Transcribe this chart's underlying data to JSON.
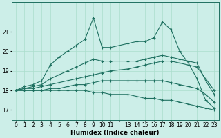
{
  "xlabel": "Humidex (Indice chaleur)",
  "bg_color": "#cceee8",
  "grid_color": "#aaddcc",
  "line_color": "#1e7060",
  "xlim": [
    -0.5,
    23.5
  ],
  "ylim": [
    16.5,
    22.5
  ],
  "yticks": [
    17,
    18,
    19,
    20,
    21
  ],
  "xtick_labels": [
    "0",
    "1",
    "2",
    "3",
    "4",
    "5",
    "6",
    "7",
    "8",
    "9",
    "10",
    "11",
    "",
    "13",
    "14",
    "15",
    "16",
    "17",
    "18",
    "19",
    "20",
    "21",
    "22",
    "23"
  ],
  "xtick_positions": [
    0,
    1,
    2,
    3,
    4,
    5,
    6,
    7,
    8,
    9,
    10,
    11,
    12,
    13,
    14,
    15,
    16,
    17,
    18,
    19,
    20,
    21,
    22,
    23
  ],
  "series_x": [
    0,
    1,
    2,
    3,
    4,
    5,
    6,
    7,
    8,
    9,
    10,
    11,
    13,
    14,
    15,
    16,
    17,
    18,
    19,
    20,
    21,
    22,
    23
  ],
  "series_max": [
    18.0,
    18.2,
    18.3,
    18.5,
    19.3,
    19.7,
    20.0,
    20.3,
    20.6,
    21.7,
    20.2,
    20.2,
    20.4,
    20.5,
    20.5,
    20.7,
    21.5,
    21.1,
    20.0,
    19.4,
    18.6,
    17.5,
    17.1
  ],
  "series_q3": [
    18.0,
    18.1,
    18.2,
    18.3,
    18.6,
    18.8,
    19.0,
    19.2,
    19.4,
    19.6,
    19.5,
    19.5,
    19.5,
    19.5,
    19.6,
    19.7,
    19.8,
    19.7,
    19.6,
    19.5,
    19.4,
    18.5,
    17.8
  ],
  "series_med": [
    18.0,
    18.1,
    18.1,
    18.2,
    18.3,
    18.4,
    18.5,
    18.6,
    18.7,
    18.8,
    18.9,
    19.0,
    19.1,
    19.2,
    19.3,
    19.4,
    19.5,
    19.5,
    19.4,
    19.3,
    19.2,
    18.6,
    18.0
  ],
  "series_q1": [
    18.0,
    18.0,
    18.0,
    18.0,
    18.1,
    18.1,
    18.2,
    18.3,
    18.3,
    18.4,
    18.5,
    18.5,
    18.5,
    18.5,
    18.5,
    18.5,
    18.5,
    18.4,
    18.3,
    18.2,
    18.1,
    17.8,
    17.4
  ],
  "series_min": [
    18.0,
    18.0,
    18.0,
    18.0,
    18.0,
    18.0,
    18.0,
    18.0,
    18.0,
    17.9,
    17.9,
    17.8,
    17.8,
    17.7,
    17.6,
    17.6,
    17.5,
    17.5,
    17.4,
    17.3,
    17.2,
    17.1,
    17.0
  ]
}
